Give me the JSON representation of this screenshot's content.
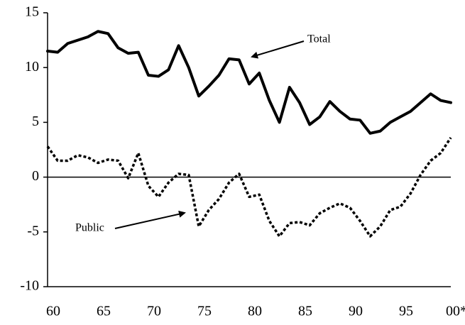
{
  "chart_data": {
    "type": "line",
    "x": [
      60,
      61,
      62,
      63,
      64,
      65,
      66,
      67,
      68,
      69,
      70,
      71,
      72,
      73,
      74,
      75,
      76,
      77,
      78,
      79,
      80,
      81,
      82,
      83,
      84,
      85,
      86,
      87,
      88,
      89,
      90,
      91,
      92,
      93,
      94,
      95,
      96,
      97,
      98,
      99,
      100
    ],
    "series": [
      {
        "name": "Total",
        "color": "#000000",
        "style": "solid",
        "values": [
          11.5,
          11.4,
          12.2,
          12.5,
          12.8,
          13.3,
          13.1,
          11.8,
          11.3,
          11.4,
          9.3,
          9.2,
          9.8,
          12.0,
          10.0,
          7.4,
          8.3,
          9.3,
          10.8,
          10.7,
          8.5,
          9.5,
          7.0,
          5.0,
          8.2,
          6.8,
          4.8,
          5.5,
          6.9,
          6.0,
          5.3,
          5.2,
          4.0,
          4.2,
          5.0,
          5.5,
          6.0,
          6.8,
          7.6,
          7.0,
          6.8
        ]
      },
      {
        "name": "Public",
        "color": "#000000",
        "style": "dashed",
        "values": [
          2.8,
          1.5,
          1.5,
          2.0,
          1.8,
          1.3,
          1.6,
          1.5,
          -0.1,
          2.2,
          -0.8,
          -1.8,
          -0.5,
          0.3,
          0.2,
          -4.5,
          -3.0,
          -2.0,
          -0.5,
          0.3,
          -1.8,
          -1.6,
          -4.0,
          -5.4,
          -4.2,
          -4.1,
          -4.4,
          -3.3,
          -2.8,
          -2.4,
          -2.8,
          -4.0,
          -5.4,
          -4.5,
          -3.0,
          -2.7,
          -1.5,
          0.2,
          1.5,
          2.2,
          3.6
        ]
      }
    ],
    "xlim": [
      60,
      100
    ],
    "xticks": [
      60,
      65,
      70,
      75,
      80,
      85,
      90,
      95,
      {
        "value": 100,
        "label": "00*"
      }
    ],
    "ylim": [
      -10,
      15
    ],
    "yticks": [
      -10,
      -5,
      0,
      5,
      10,
      15
    ],
    "annotations": [
      "Total",
      "Public"
    ]
  }
}
